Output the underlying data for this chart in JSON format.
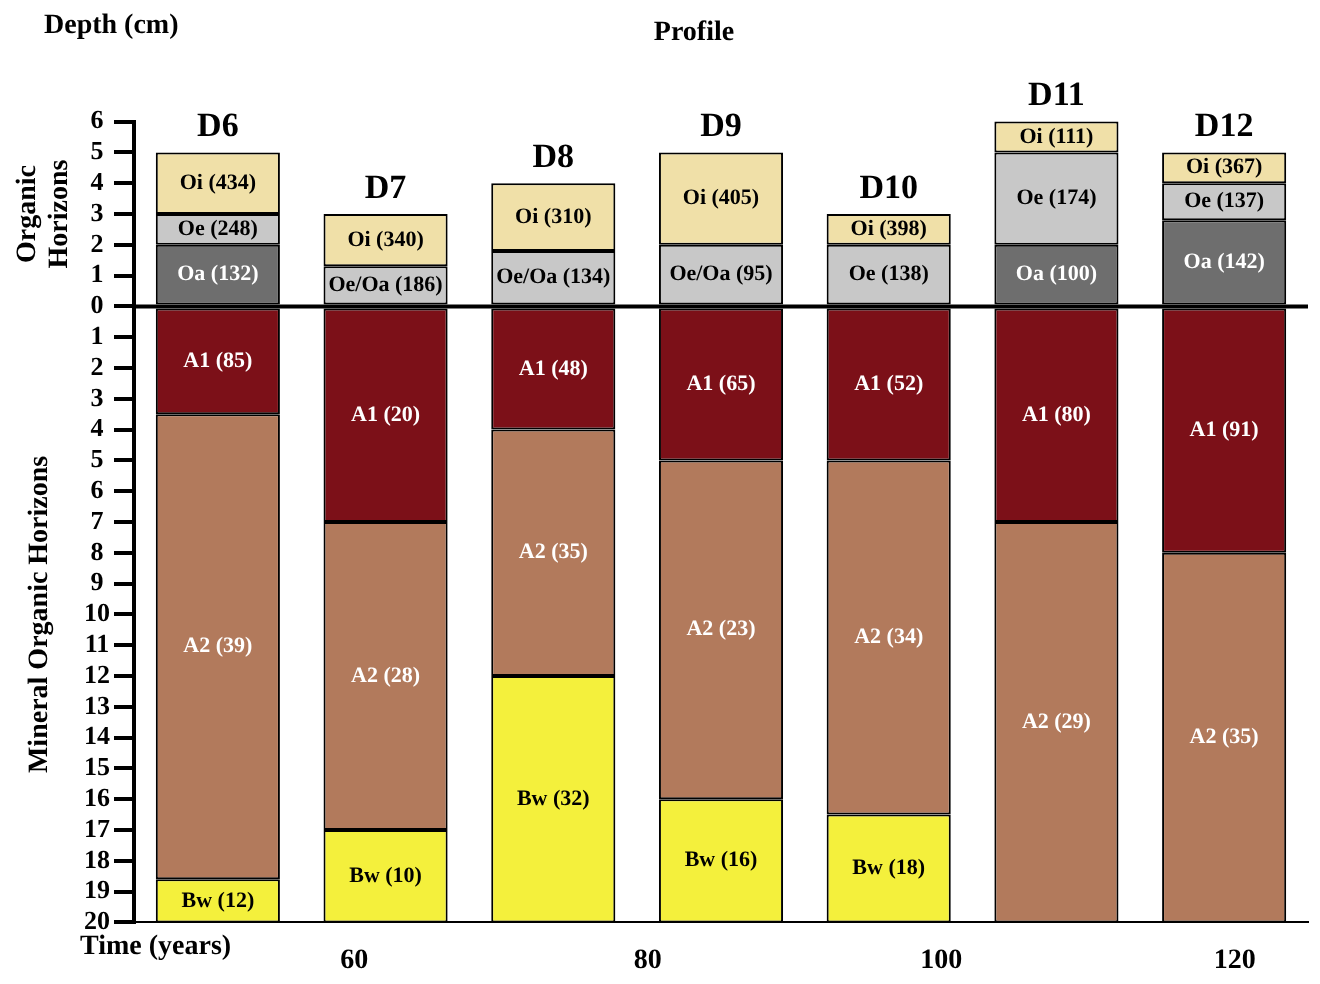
{
  "chart_data": {
    "type": "bar",
    "title": "Profile",
    "ylabel": "Depth (cm)",
    "x2label": "Time (years)",
    "categories": [
      "D6",
      "D7",
      "D8",
      "D9",
      "D10",
      "D11",
      "D12"
    ],
    "series": [
      {
        "color": "#f0e0a8",
        "base": [
          3,
          1.3,
          1.8,
          2,
          2,
          5,
          4
        ],
        "values": [
          2,
          1.7,
          2.2,
          3,
          1,
          1,
          1
        ]
      },
      {
        "color": "#c8c8c8",
        "base": [
          2,
          null,
          null,
          null,
          0,
          2,
          2.8
        ],
        "values": [
          1,
          null,
          null,
          null,
          2,
          3,
          1.2
        ]
      },
      {
        "color": "#c8c8c8",
        "base": [
          null,
          0,
          0,
          0,
          null,
          null,
          null
        ],
        "values": [
          null,
          1.3,
          1.8,
          2,
          null,
          null,
          null
        ]
      },
      {
        "color": "#6e6e6e",
        "base": [
          0,
          null,
          null,
          null,
          null,
          0,
          0
        ],
        "values": [
          2,
          null,
          null,
          null,
          null,
          2,
          2.8
        ]
      },
      {
        "color": "#7c1018",
        "base": [
          0,
          0,
          0,
          0,
          0,
          0,
          0
        ],
        "values": [
          -3.5,
          -7,
          -4,
          -5,
          -5,
          -7,
          -8
        ]
      },
      {
        "color": "#b27a5c",
        "base": [
          -3.5,
          -7,
          -4,
          -5,
          -5,
          -7,
          -8
        ],
        "values": [
          -15.1,
          -10,
          -8,
          -11,
          -11.5,
          -13,
          -12
        ]
      },
      {
        "color": "#f4f03c",
        "base": [
          -18.6,
          -17,
          -12,
          -16,
          -16.5,
          null,
          null
        ],
        "values": [
          -1.4,
          -3,
          -8,
          -4,
          -3.5,
          null,
          null
        ]
      }
    ],
    "ylim": [
      -20,
      6
    ],
    "yticks": [
      6,
      5,
      4,
      3,
      2,
      1,
      0,
      {
        "value": -1,
        "label": "1"
      },
      {
        "value": -2,
        "label": "2"
      },
      {
        "value": -3,
        "label": "3"
      },
      {
        "value": -4,
        "label": "4"
      },
      {
        "value": -5,
        "label": "5"
      },
      {
        "value": -6,
        "label": "6"
      },
      {
        "value": -7,
        "label": "7"
      },
      {
        "value": -8,
        "label": "8"
      },
      {
        "value": -9,
        "label": "9"
      },
      {
        "value": -10,
        "label": "10"
      },
      {
        "value": -11,
        "label": "11"
      },
      {
        "value": -12,
        "label": "12"
      },
      {
        "value": -13,
        "label": "13"
      },
      {
        "value": -14,
        "label": "14"
      },
      {
        "value": -15,
        "label": "15"
      },
      {
        "value": -16,
        "label": "16"
      },
      {
        "value": -17,
        "label": "17"
      },
      {
        "value": -18,
        "label": "18"
      },
      {
        "value": -19,
        "label": "19"
      },
      {
        "value": -20,
        "label": "20"
      }
    ],
    "x2lim": [
      45,
      125
    ],
    "x2ticks": [
      60,
      80,
      100,
      120
    ],
    "ref_lines": [
      {
        "axis": "y",
        "value": 0
      }
    ],
    "annotations": [
      "Organic Horizons",
      "Mineral Organic Horizons",
      "Oi (434)",
      "Oe (248)",
      "Oa (132)",
      "A1 (85)",
      "A2 (39)",
      "Bw (12)",
      "Oi (340)",
      "Oe/Oa (186)",
      "A1 (20)",
      "A2 (28)",
      "Bw (10)",
      "Oi (310)",
      "Oe/Oa (134)",
      "A1 (48)",
      "A2 (35)",
      "Bw (32)",
      "Oi (405)",
      "Oe/Oa (95)",
      "A1 (65)",
      "A2 (23)",
      "Bw (16)",
      "Oi (398)",
      "Oe (138)",
      "A1 (52)",
      "A2 (34)",
      "Bw (18)",
      "Oi (111)",
      "Oe (174)",
      "Oa (100)",
      "A1 (80)",
      "A2 (29)",
      "Oi (367)",
      "Oe (137)",
      "Oa (142)",
      "A1 (91)",
      "A2 (35)"
    ],
    "grid": false,
    "legend": false
  }
}
